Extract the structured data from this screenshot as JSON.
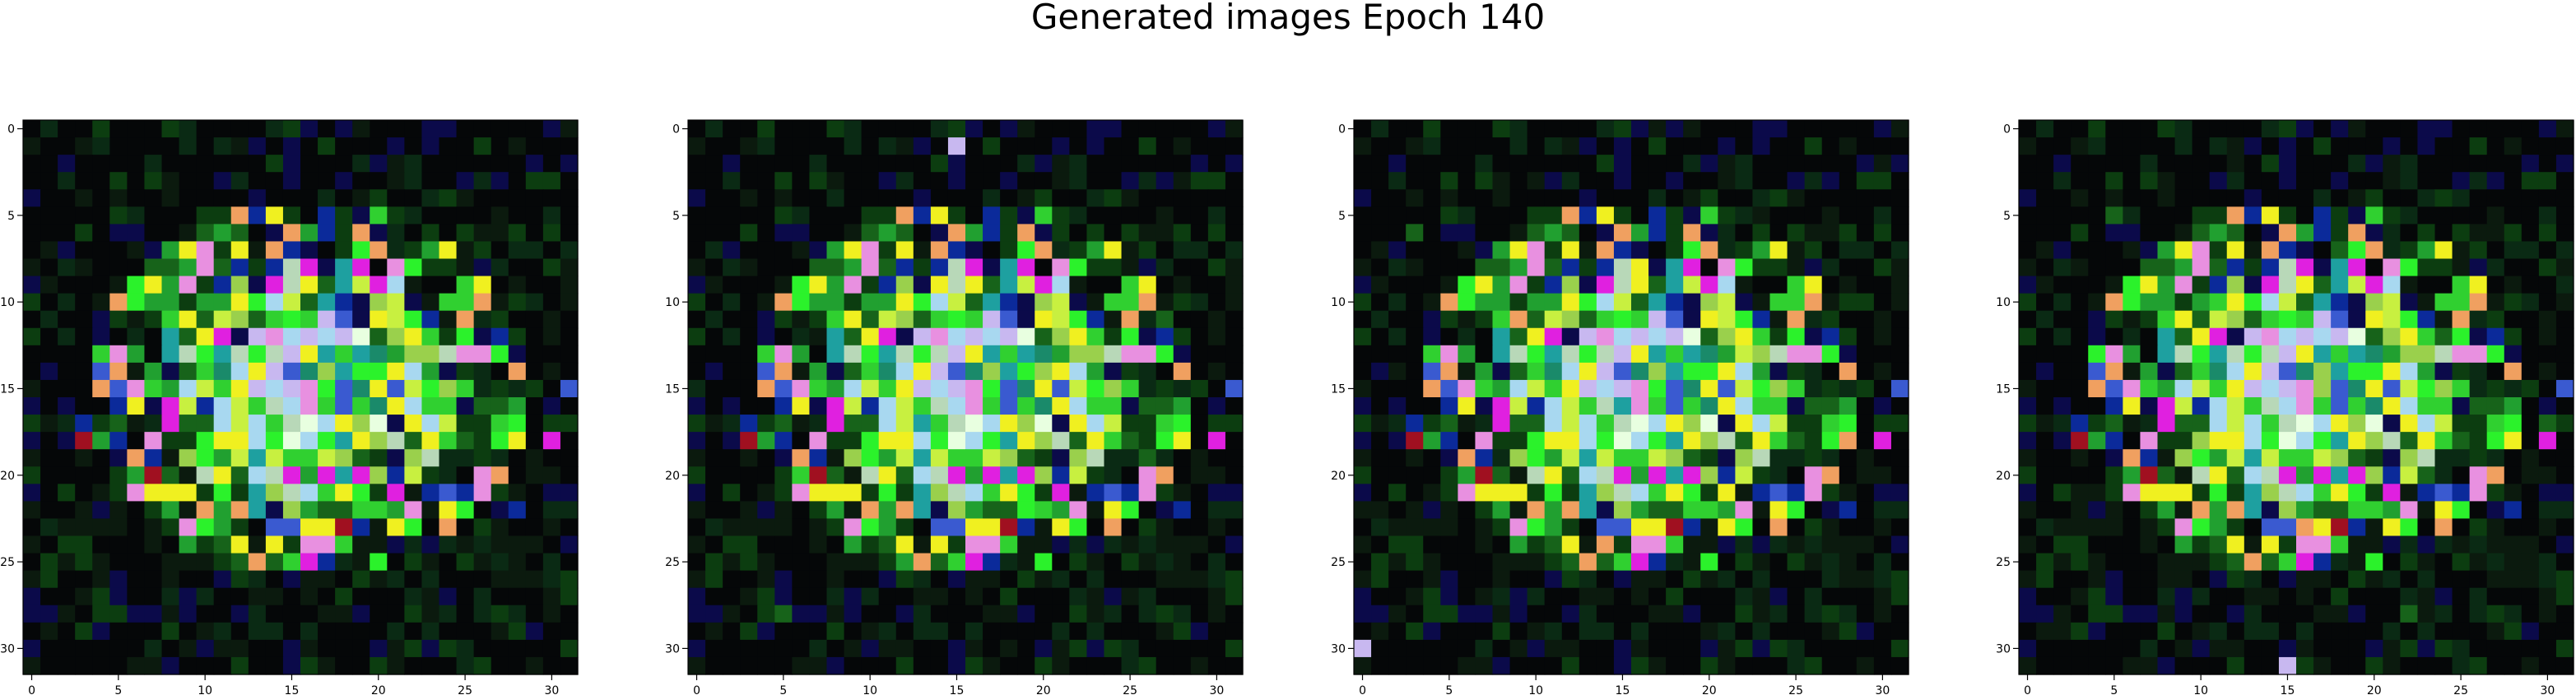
{
  "title": "Generated images Epoch 140",
  "chart_data": {
    "type": "heatmap",
    "title": "Generated images Epoch 140",
    "panel_count": 4,
    "grid_size": 32,
    "x_ticks": [
      0,
      5,
      10,
      15,
      20,
      25,
      30
    ],
    "y_ticks": [
      0,
      5,
      10,
      15,
      20,
      25,
      30
    ],
    "xlim": [
      -0.5,
      31.5
    ],
    "ylim": [
      31.5,
      -0.5
    ],
    "background_color": "#050708",
    "palette": [
      "#050708",
      "#0b1a0e",
      "#0a2a14",
      "#0c3d10",
      "#17631a",
      "#21a030",
      "#30d030",
      "#2bf22b",
      "#9ad04c",
      "#c8f040",
      "#e8ffe0",
      "#b8d8b8",
      "#a8d8f0",
      "#1ea0a0",
      "#1a8a6a",
      "#3a5ad0",
      "#0b2a9a",
      "#0b0a4a",
      "#c8b8f0",
      "#e890e0",
      "#e020e0",
      "#f0f020",
      "#f0a060",
      "#a01020"
    ],
    "palette_names": [
      "near-black",
      "dark-green",
      "forest",
      "deep-green",
      "green",
      "mid-green",
      "bright-green",
      "neon-green",
      "olive-lime",
      "yellow-lime",
      "near-white",
      "grey-green",
      "light-blue",
      "teal",
      "sea-green",
      "blue",
      "navy",
      "dark-navy",
      "lavender",
      "pink",
      "magenta",
      "yellow",
      "orange",
      "red"
    ]
  }
}
